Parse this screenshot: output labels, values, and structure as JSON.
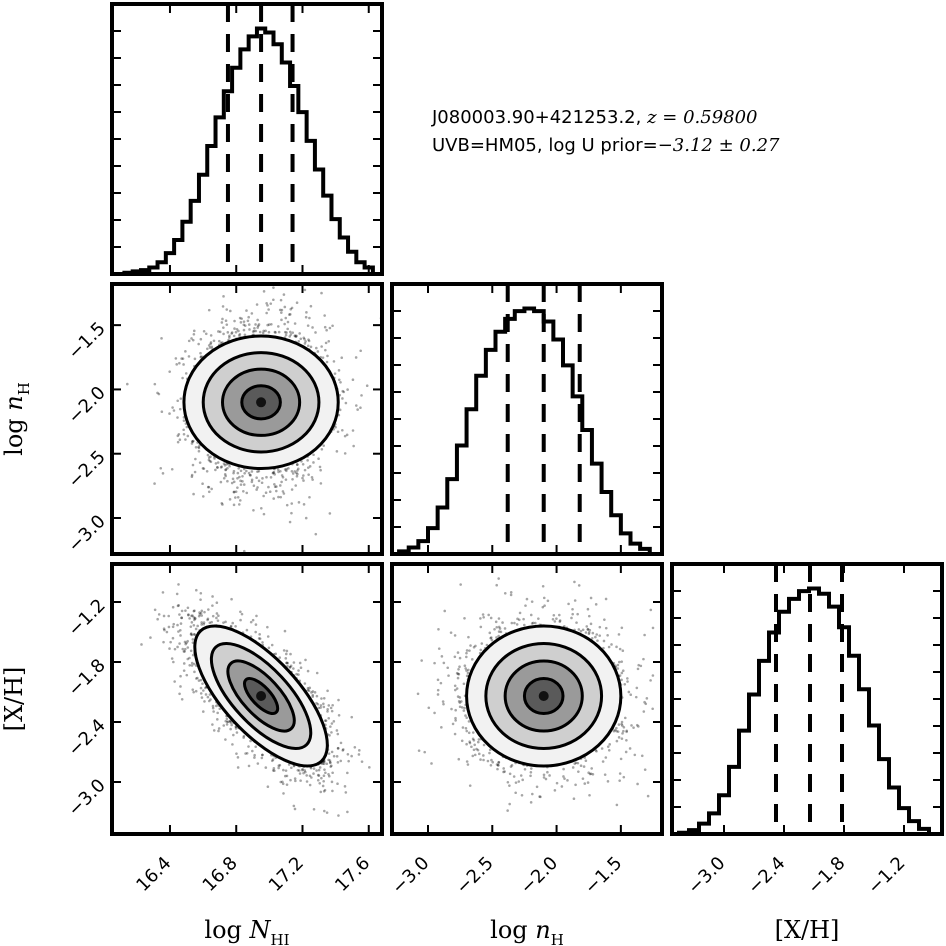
{
  "chart_data": {
    "type": "corner",
    "annotation": {
      "line1_text": "J080003.90+421253.2, ",
      "line1_math": "z = 0.59800",
      "line2_text": "UVB=HM05, log U prior=",
      "line2_math": "−3.12 ± 0.27"
    },
    "parameters": [
      {
        "id": "NHI",
        "label_prefix": "log ",
        "label_main": "N",
        "label_sub": "HI",
        "range": [
          16.05,
          17.68
        ],
        "ticks": [
          16.4,
          16.8,
          17.2,
          17.6
        ],
        "tick_labels": [
          "16.4",
          "16.8",
          "17.2",
          "17.6"
        ],
        "y_ticks": [],
        "quantiles": [
          16.75,
          16.95,
          17.14
        ]
      },
      {
        "id": "nH",
        "label_prefix": "log ",
        "label_main": "n",
        "label_sub": "H",
        "range": [
          -3.28,
          -1.18
        ],
        "ticks": [
          -3.0,
          -2.5,
          -2.0,
          -1.5
        ],
        "tick_labels": [
          "−3.0",
          "−2.5",
          "−2.0",
          "−1.5"
        ],
        "y_ticks": [
          -3.0,
          -2.5,
          -2.0,
          -1.5
        ],
        "y_tick_labels": [
          "−3.0",
          "−2.5",
          "−2.0",
          "−1.5"
        ],
        "quantiles": [
          -2.38,
          -2.1,
          -1.82
        ]
      },
      {
        "id": "XH",
        "label_prefix": "",
        "label_main": "[X/H]",
        "label_sub": "",
        "range": [
          -3.52,
          -0.82
        ],
        "ticks": [
          -3.0,
          -2.4,
          -1.8,
          -1.2
        ],
        "tick_labels": [
          "−3.0",
          "−2.4",
          "−1.8",
          "−1.2"
        ],
        "y_ticks": [
          -3.0,
          -2.4,
          -1.8,
          -1.2
        ],
        "y_tick_labels": [
          "−3.0",
          "−2.4",
          "−1.8",
          "−1.2"
        ],
        "quantiles": [
          -2.48,
          -2.14,
          -1.82
        ]
      }
    ],
    "histograms": [
      {
        "param": "NHI",
        "bin_edges": [
          16.125,
          16.175,
          16.225,
          16.275,
          16.325,
          16.375,
          16.425,
          16.475,
          16.525,
          16.575,
          16.625,
          16.675,
          16.725,
          16.775,
          16.825,
          16.875,
          16.925,
          16.975,
          17.025,
          17.075,
          17.125,
          17.175,
          17.225,
          17.275,
          17.325,
          17.375,
          17.425,
          17.475,
          17.525,
          17.575,
          17.625
        ],
        "counts": [
          1,
          2,
          3,
          5,
          9,
          16,
          26,
          40,
          56,
          76,
          98,
          120,
          140,
          158,
          172,
          182,
          188,
          185,
          176,
          162,
          144,
          124,
          102,
          80,
          60,
          42,
          28,
          17,
          9,
          5
        ]
      },
      {
        "param": "nH",
        "bin_edges": [
          -3.225,
          -3.15,
          -3.075,
          -3.0,
          -2.925,
          -2.85,
          -2.775,
          -2.7,
          -2.625,
          -2.55,
          -2.475,
          -2.4,
          -2.325,
          -2.25,
          -2.175,
          -2.1,
          -2.025,
          -1.95,
          -1.875,
          -1.8,
          -1.725,
          -1.65,
          -1.575,
          -1.5,
          -1.425,
          -1.35,
          -1.275
        ],
        "counts": [
          2,
          5,
          10,
          20,
          36,
          58,
          84,
          112,
          138,
          158,
          172,
          182,
          188,
          190,
          188,
          180,
          166,
          146,
          122,
          96,
          70,
          48,
          30,
          16,
          8,
          4
        ]
      },
      {
        "param": "XH",
        "bin_edges": [
          -3.45,
          -3.35,
          -3.25,
          -3.15,
          -3.05,
          -2.95,
          -2.85,
          -2.75,
          -2.65,
          -2.55,
          -2.45,
          -2.35,
          -2.25,
          -2.15,
          -2.05,
          -1.95,
          -1.85,
          -1.75,
          -1.65,
          -1.55,
          -1.45,
          -1.35,
          -1.25,
          -1.15,
          -1.05,
          -0.95
        ],
        "counts": [
          1,
          3,
          8,
          16,
          30,
          52,
          80,
          108,
          134,
          156,
          172,
          182,
          188,
          190,
          186,
          176,
          160,
          138,
          112,
          84,
          58,
          36,
          20,
          10,
          4
        ]
      }
    ],
    "scatter_2d": [
      {
        "x": "NHI",
        "y": "nH",
        "mean": [
          16.95,
          -2.1
        ],
        "std": [
          0.2,
          0.3
        ],
        "correlation": 0.0,
        "contour_levels": [
          0.5,
          1.0,
          1.5,
          2.0
        ]
      },
      {
        "x": "NHI",
        "y": "XH",
        "mean": [
          16.95,
          -2.14
        ],
        "std": [
          0.2,
          0.35
        ],
        "correlation": -0.7,
        "contour_levels": [
          0.5,
          1.0,
          1.5,
          2.0
        ]
      },
      {
        "x": "nH",
        "y": "XH",
        "mean": [
          -2.1,
          -2.14
        ],
        "std": [
          0.3,
          0.35
        ],
        "correlation": 0.0,
        "contour_levels": [
          0.5,
          1.0,
          1.5,
          2.0
        ]
      }
    ]
  }
}
